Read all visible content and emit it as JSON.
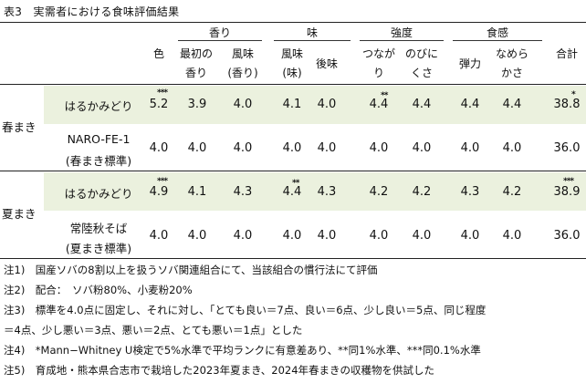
{
  "table": {
    "title": "表3　実需者における食味評価結果",
    "group_headers": {
      "aroma": "香り",
      "taste": "味",
      "strength": "強度",
      "texture": "食感"
    },
    "col_headers": {
      "color": "色",
      "first_aroma_1": "最初の",
      "first_aroma_2": "香り",
      "flavor_aroma_1": "風味",
      "flavor_aroma_2": "(香り)",
      "flavor_taste_1": "風味",
      "flavor_taste_2": "(味)",
      "aftertaste": "後味",
      "cohesion_1": "つなが",
      "cohesion_2": "り",
      "stretch_1": "のびに",
      "stretch_2": "くさ",
      "elasticity": "弾力",
      "smoothness_1": "なめら",
      "smoothness_2": "かさ",
      "total": "合計"
    },
    "sections": [
      {
        "label": "春まき",
        "rows": [
          {
            "name_1": "はるかみどり",
            "name_2": "",
            "values": [
              "5.2",
              "3.9",
              "4.0",
              "4.1",
              "4.0",
              "4.4",
              "4.4",
              "4.4",
              "4.4",
              "38.8"
            ],
            "marks": [
              "***",
              "",
              "",
              "",
              "",
              "**",
              "",
              "",
              "",
              "*"
            ],
            "highlight": true
          },
          {
            "name_1": "NARO-FE-1",
            "name_2": "(春まき標準)",
            "values": [
              "4.0",
              "4.0",
              "4.0",
              "4.0",
              "4.0",
              "4.0",
              "4.0",
              "4.0",
              "4.0",
              "36.0"
            ],
            "marks": [
              "",
              "",
              "",
              "",
              "",
              "",
              "",
              "",
              "",
              ""
            ],
            "highlight": false
          }
        ]
      },
      {
        "label": "夏まき",
        "rows": [
          {
            "name_1": "はるかみどり",
            "name_2": "",
            "values": [
              "4.9",
              "4.1",
              "4.3",
              "4.4",
              "4.3",
              "4.2",
              "4.2",
              "4.3",
              "4.2",
              "38.9"
            ],
            "marks": [
              "***",
              "",
              "",
              "**",
              "",
              "",
              "",
              "",
              "",
              "***"
            ],
            "highlight": true
          },
          {
            "name_1": "常陸秋そば",
            "name_2": "(夏まき標準)",
            "values": [
              "4.0",
              "4.0",
              "4.0",
              "4.0",
              "4.0",
              "4.0",
              "4.0",
              "4.0",
              "4.0",
              "36.0"
            ],
            "marks": [
              "",
              "",
              "",
              "",
              "",
              "",
              "",
              "",
              "",
              ""
            ],
            "highlight": false
          }
        ]
      }
    ],
    "notes": [
      "注1)　国産ソバの8割以上を扱うソバ関連組合にて、当該組合の慣行法にて評価",
      "注2)　配合：　ソバ粉80%、小麦粉20%",
      "注3)　標準を4.0点に固定し、それに対し、「とても良い＝7点、良い＝6点、少し良い＝5点、同じ程度",
      "＝4点、少し悪い＝3点、悪い＝2点、とても悪い＝1点」とした",
      "注4)　*Mann−Whitney U検定で5%水準で平均ランクに有意差あり、**同1%水準、***同0.1%水準",
      "注5)　育成地・熊本県合志市で栽培した2023年夏まき、2024年春まきの収穫物を供試した"
    ],
    "colors": {
      "highlight_row": "#ebf1de",
      "rule": "#222222"
    }
  }
}
